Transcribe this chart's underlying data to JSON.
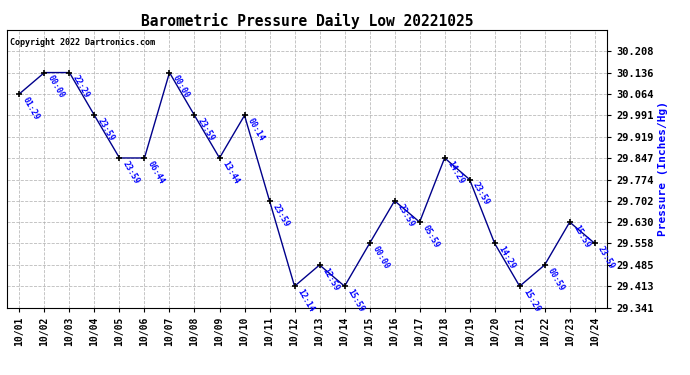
{
  "title": "Barometric Pressure Daily Low 20221025",
  "ylabel": "Pressure (Inches/Hg)",
  "copyright": "Copyright 2022 Dartronics.com",
  "x_labels": [
    "10/01",
    "10/02",
    "10/03",
    "10/04",
    "10/05",
    "10/06",
    "10/07",
    "10/08",
    "10/09",
    "10/10",
    "10/11",
    "10/12",
    "10/13",
    "10/14",
    "10/15",
    "10/16",
    "10/17",
    "10/18",
    "10/19",
    "10/20",
    "10/21",
    "10/22",
    "10/23",
    "10/24"
  ],
  "x_values": [
    0,
    1,
    2,
    3,
    4,
    5,
    6,
    7,
    8,
    9,
    10,
    11,
    12,
    13,
    14,
    15,
    16,
    17,
    18,
    19,
    20,
    21,
    22,
    23
  ],
  "y_values": [
    30.064,
    30.136,
    30.136,
    29.991,
    29.847,
    29.847,
    30.136,
    29.991,
    29.847,
    29.991,
    29.702,
    29.413,
    29.485,
    29.413,
    29.558,
    29.702,
    29.63,
    29.847,
    29.774,
    29.558,
    29.413,
    29.485,
    29.63,
    29.558
  ],
  "point_labels": [
    "01:29",
    "00:00",
    "22:29",
    "23:59",
    "23:59",
    "06:44",
    "00:00",
    "23:59",
    "13:44",
    "00:14",
    "23:59",
    "12:14",
    "12:59",
    "15:59",
    "00:00",
    "23:59",
    "05:59",
    "14:29",
    "23:59",
    "14:29",
    "15:29",
    "00:59",
    "15:59",
    "23:59"
  ],
  "ylim_min": 29.341,
  "ylim_max": 30.28,
  "yticks": [
    29.341,
    29.413,
    29.485,
    29.558,
    29.63,
    29.702,
    29.774,
    29.847,
    29.919,
    29.991,
    30.064,
    30.136,
    30.208
  ],
  "line_color": "#00008B",
  "marker_color": "#000000",
  "label_color": "#0000FF",
  "title_color": "#000000",
  "ylabel_color": "#0000FF",
  "copyright_color": "#000000",
  "bg_color": "#FFFFFF",
  "grid_color": "#AAAAAA"
}
